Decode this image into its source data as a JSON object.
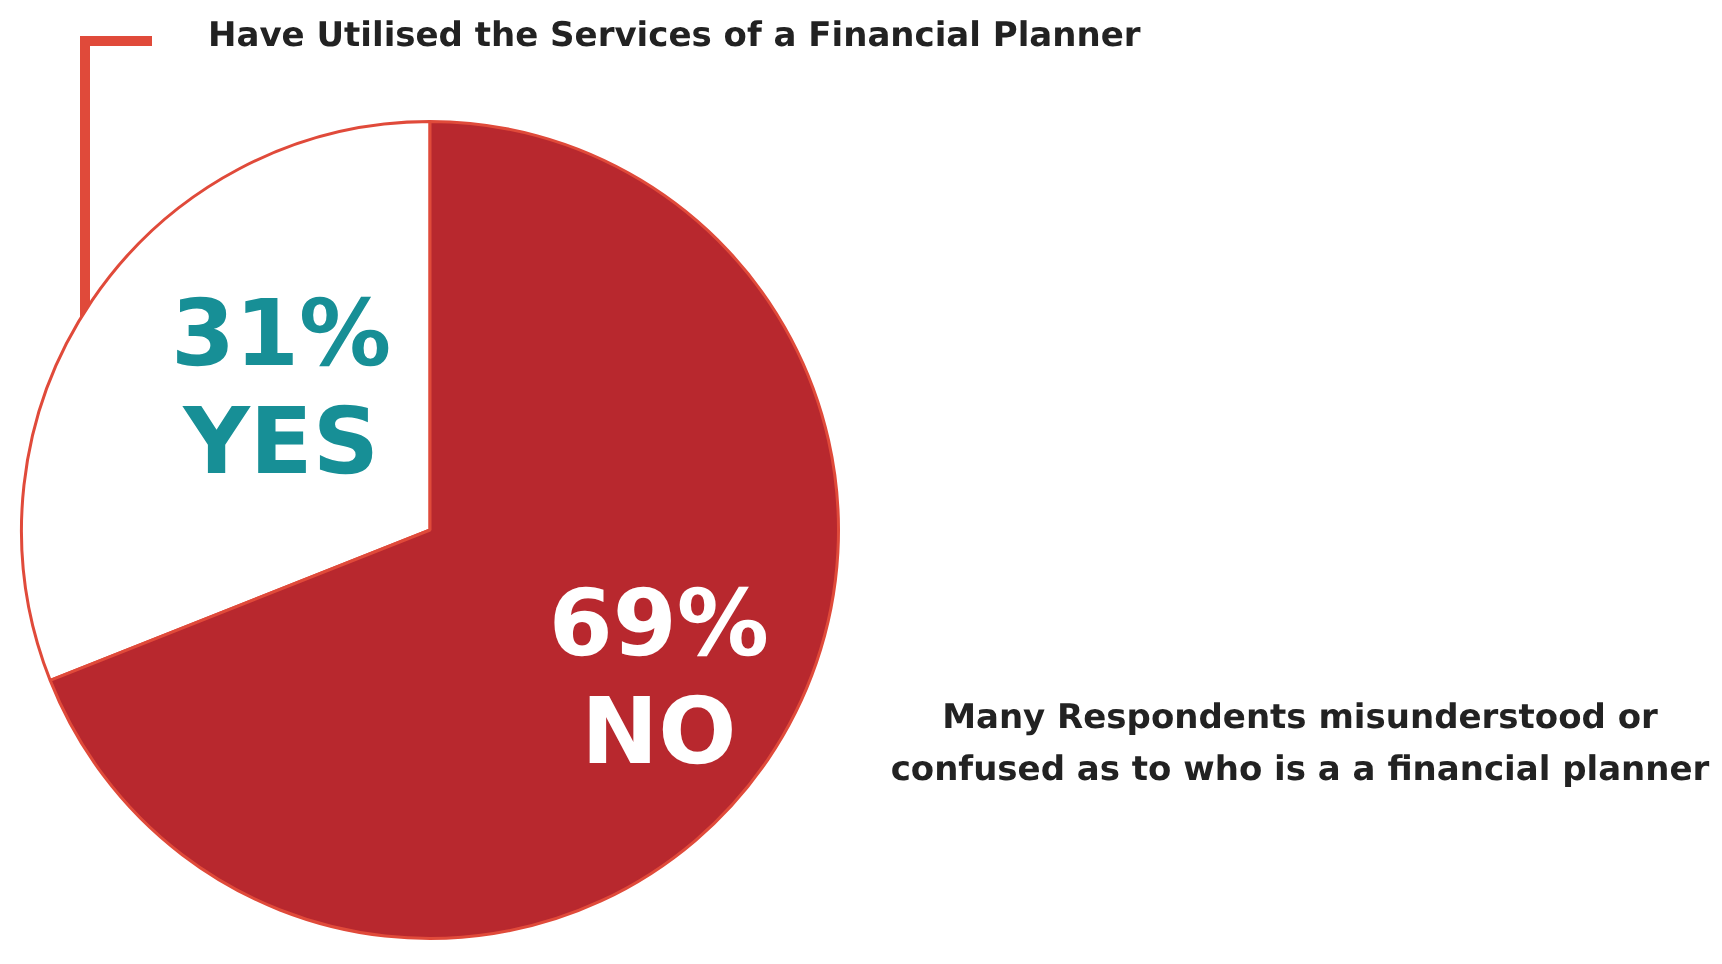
{
  "chart_data": {
    "type": "pie",
    "title": "Have Utilised the Services of a Financial Planner",
    "categories": [
      "YES",
      "NO"
    ],
    "values": [
      31,
      69
    ],
    "value_labels": [
      "31%",
      "69%"
    ],
    "colors": [
      "#ffffff",
      "#b8282e"
    ],
    "annotations": [
      "Many Respondents misunderstood or confused as to who is a a financial planner"
    ],
    "legend": false
  }
}
